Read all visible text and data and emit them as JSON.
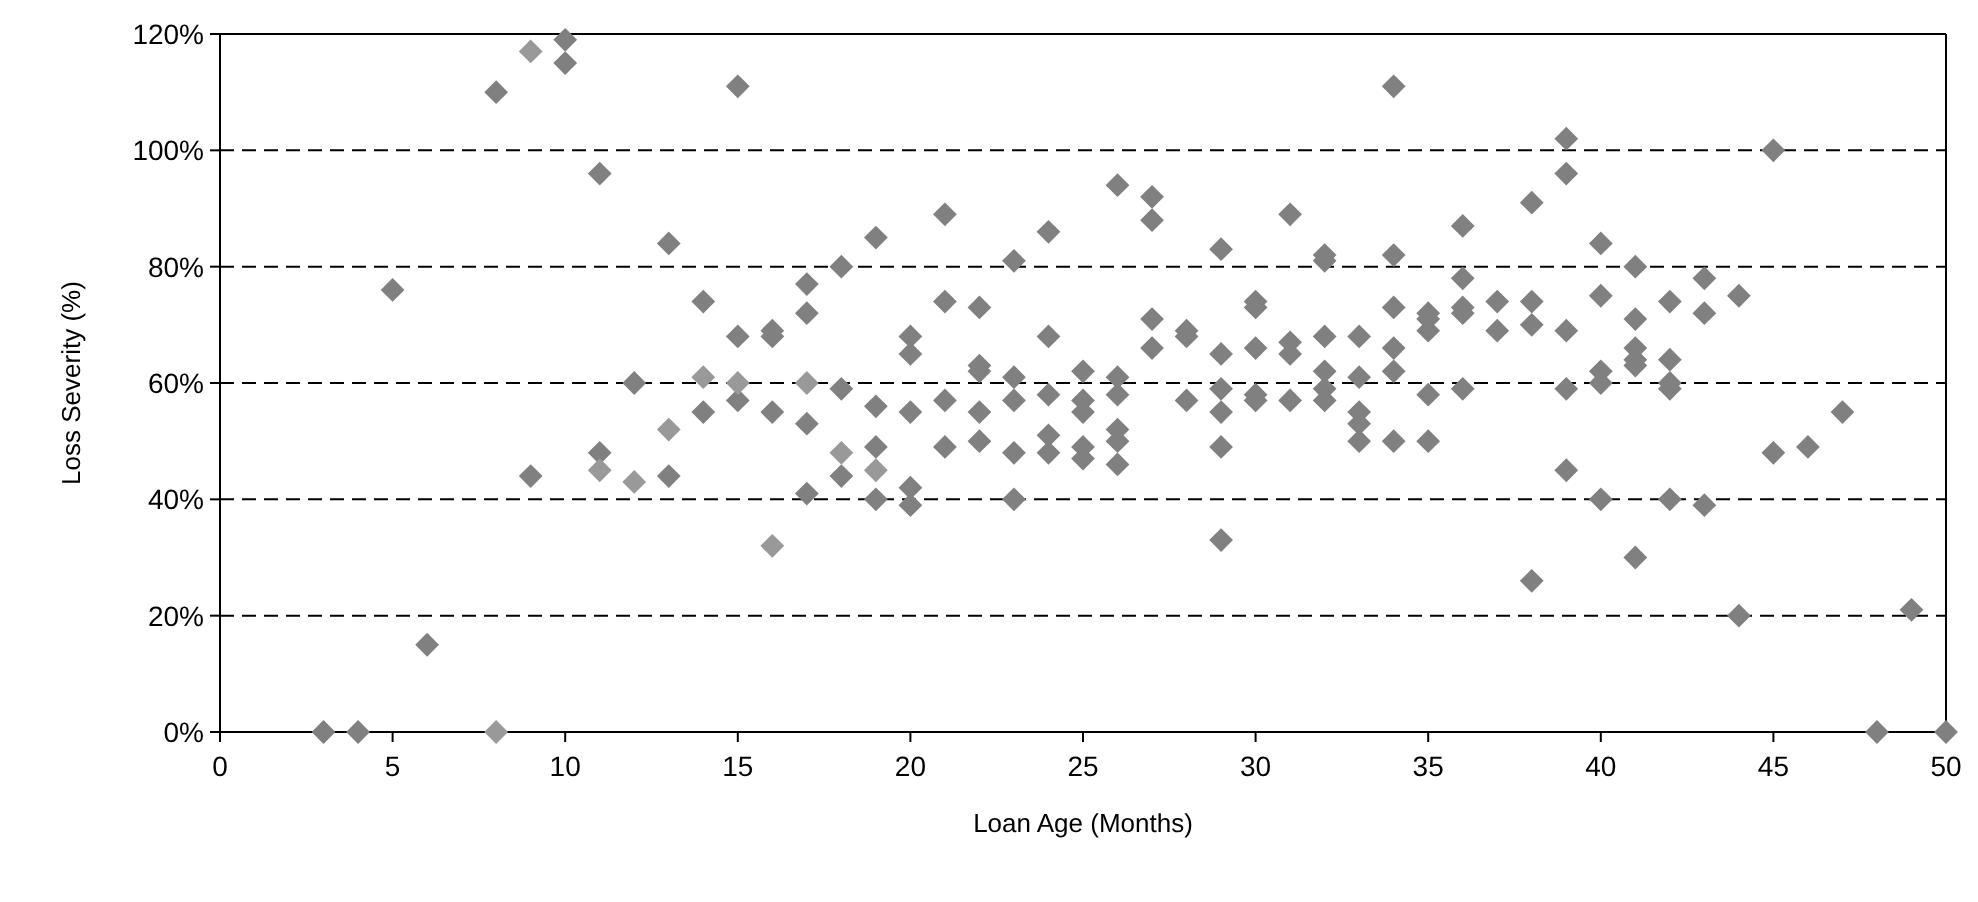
{
  "chart_data": {
    "type": "scatter",
    "xlabel": "Loan Age (Months)",
    "ylabel": "Loss Severity (%)",
    "xlim": [
      0,
      50
    ],
    "xticks": [
      0,
      5,
      10,
      15,
      20,
      25,
      30,
      35,
      40,
      45,
      50
    ],
    "ylim": [
      0,
      120
    ],
    "yticks": [
      {
        "value": 0,
        "label": "0%"
      },
      {
        "value": 20,
        "label": "20%"
      },
      {
        "value": 40,
        "label": "40%"
      },
      {
        "value": 60,
        "label": "60%"
      },
      {
        "value": 80,
        "label": "80%"
      },
      {
        "value": 100,
        "label": "100%"
      },
      {
        "value": 120,
        "label": "120%"
      }
    ],
    "grid": "y",
    "marker": "diamond",
    "series": [
      {
        "color": "#808080",
        "x": [
          3,
          4,
          5,
          6,
          8,
          9,
          10,
          10,
          11,
          11,
          12,
          13,
          13,
          14,
          14,
          15,
          15,
          15,
          16,
          16,
          16,
          17,
          17,
          17,
          17,
          18,
          18,
          18,
          19,
          19,
          19,
          19,
          20,
          20,
          20,
          20,
          20,
          21,
          21,
          21,
          21,
          22,
          22,
          22,
          22,
          22,
          23,
          23,
          23,
          23,
          23,
          24,
          24,
          24,
          24,
          24,
          25,
          25,
          25,
          25,
          25,
          26,
          26,
          26,
          26,
          26,
          26,
          27,
          27,
          27,
          27,
          28,
          28,
          28,
          29,
          29,
          29,
          29,
          29,
          29,
          30,
          30,
          30,
          30,
          30,
          31,
          31,
          31,
          31,
          32,
          32,
          32,
          32,
          32,
          32,
          33,
          33,
          33,
          33,
          33,
          34,
          34,
          34,
          34,
          34,
          34,
          35,
          35,
          35,
          35,
          35,
          36,
          36,
          36,
          36,
          36,
          37,
          37,
          38,
          38,
          38,
          38,
          39,
          39,
          39,
          39,
          39,
          40,
          40,
          40,
          40,
          40,
          41,
          41,
          41,
          41,
          41,
          41,
          42,
          42,
          42,
          42,
          42,
          43,
          43,
          43,
          44,
          44,
          45,
          45,
          46,
          47,
          48,
          49,
          50
        ],
        "values": [
          0,
          0,
          76,
          15,
          110,
          44,
          119,
          115,
          96,
          48,
          60,
          84,
          44,
          74,
          55,
          111,
          68,
          57,
          69,
          68,
          55,
          77,
          72,
          53,
          41,
          80,
          59,
          44,
          85,
          56,
          49,
          40,
          68,
          65,
          55,
          42,
          39,
          89,
          74,
          57,
          49,
          73,
          63,
          62,
          55,
          50,
          81,
          61,
          57,
          48,
          40,
          86,
          68,
          58,
          51,
          48,
          62,
          57,
          55,
          49,
          47,
          94,
          61,
          58,
          52,
          50,
          46,
          92,
          88,
          71,
          66,
          69,
          68,
          57,
          83,
          65,
          59,
          55,
          49,
          33,
          74,
          73,
          66,
          58,
          57,
          89,
          67,
          65,
          57,
          82,
          81,
          68,
          62,
          59,
          57,
          68,
          61,
          55,
          53,
          50,
          111,
          82,
          73,
          66,
          62,
          50,
          72,
          71,
          69,
          58,
          50,
          87,
          78,
          73,
          72,
          59,
          74,
          69,
          91,
          74,
          70,
          26,
          102,
          96,
          69,
          59,
          45,
          84,
          75,
          62,
          60,
          40,
          80,
          71,
          66,
          64,
          63,
          30,
          74,
          64,
          60,
          59,
          40,
          78,
          72,
          39,
          75,
          20,
          100,
          48,
          49,
          55,
          0,
          21,
          0
        ]
      },
      {
        "color": "#999999",
        "x": [
          8,
          9,
          11,
          12,
          13,
          14,
          15,
          16,
          17,
          18,
          19
        ],
        "values": [
          0,
          117,
          45,
          43,
          52,
          61,
          60,
          32,
          60,
          48,
          45
        ]
      }
    ]
  }
}
